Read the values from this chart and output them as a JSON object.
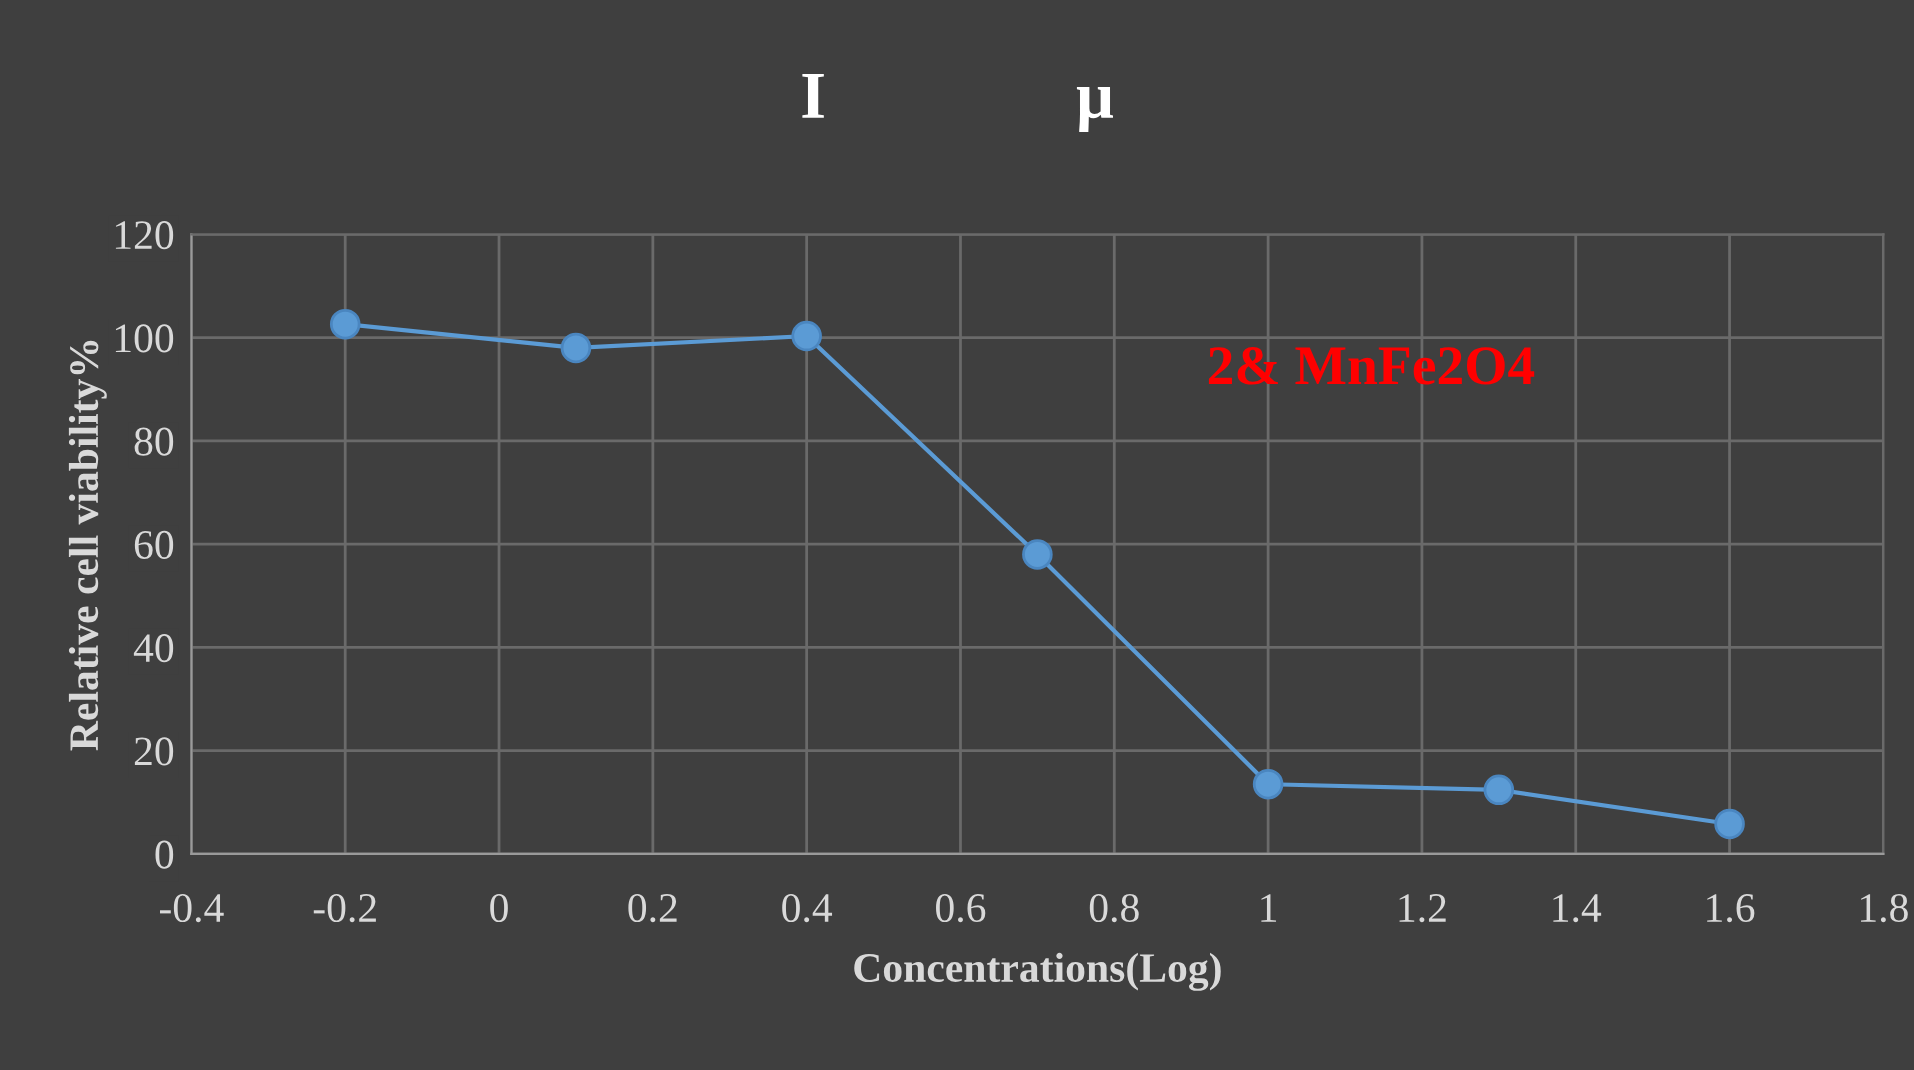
{
  "chart_data": {
    "type": "line",
    "title": "I               μ",
    "xlabel": "Concentrations(Log)",
    "ylabel": "Relative cell viability%",
    "x": [
      -0.2,
      0.1,
      0.4,
      0.7,
      1.0,
      1.3,
      1.6
    ],
    "series": [
      {
        "color": "#5b9bd5",
        "values": [
          102.6,
          98,
          100.3,
          58,
          13.5,
          12.4,
          5.8
        ]
      }
    ],
    "xlim": [
      -0.4,
      1.8
    ],
    "xticks": [
      -0.4,
      -0.2,
      0,
      0.2,
      0.4,
      0.6,
      0.8,
      1,
      1.2,
      1.4,
      1.6,
      1.8
    ],
    "ylim": [
      0,
      120
    ],
    "yticks": [
      0,
      20,
      40,
      60,
      80,
      100,
      120
    ],
    "annotations": [
      "2& MnFe2O4"
    ],
    "grid": true,
    "marker": "circle",
    "line_style": "solid",
    "legend": false
  }
}
